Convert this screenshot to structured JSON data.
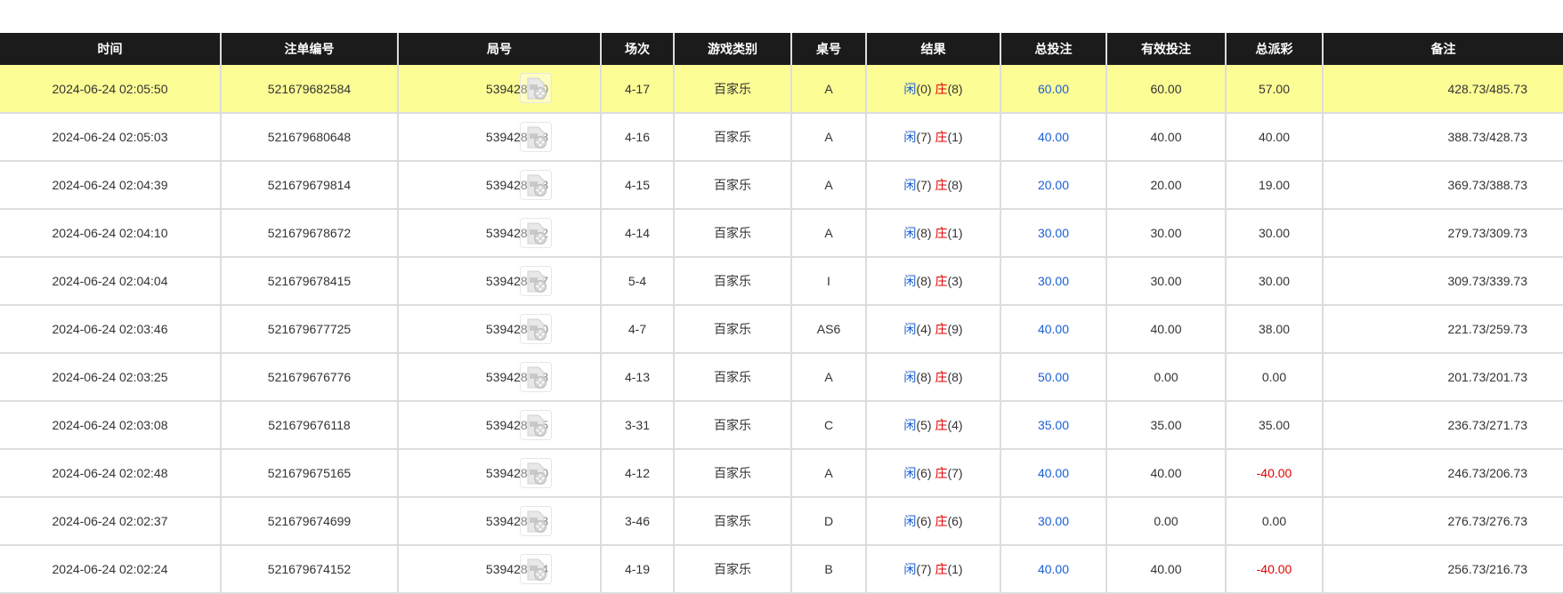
{
  "columns": [
    "时间",
    "注单编号",
    "局号",
    "场次",
    "游戏类别",
    "桌号",
    "结果",
    "总投注",
    "有效投注",
    "总派彩",
    "备注"
  ],
  "colors": {
    "header_bg": "#1b1b1b",
    "highlight_row": "#fdfd96",
    "player_blue": "#1a5fd6",
    "banker_red": "#e00000"
  },
  "rows": [
    {
      "time": "2024-06-24 02:05:50",
      "bet_id": "521679682584",
      "round": "539428740",
      "session": "4-17",
      "game": "百家乐",
      "table": "A",
      "player": "闲",
      "player_pts": "(0)",
      "banker": "庄",
      "banker_pts": "(8)",
      "total": "60.00",
      "valid": "60.00",
      "payout": "57.00",
      "payout_negative": false,
      "remark": "428.73/485.73",
      "highlighted": true
    },
    {
      "time": "2024-06-24 02:05:03",
      "bet_id": "521679680648",
      "round": "539428618",
      "session": "4-16",
      "game": "百家乐",
      "table": "A",
      "player": "闲",
      "player_pts": "(7)",
      "banker": "庄",
      "banker_pts": "(1)",
      "total": "40.00",
      "valid": "40.00",
      "payout": "40.00",
      "payout_negative": false,
      "remark": "388.73/428.73"
    },
    {
      "time": "2024-06-24 02:04:39",
      "bet_id": "521679679814",
      "round": "539428513",
      "session": "4-15",
      "game": "百家乐",
      "table": "A",
      "player": "闲",
      "player_pts": "(7)",
      "banker": "庄",
      "banker_pts": "(8)",
      "total": "20.00",
      "valid": "20.00",
      "payout": "19.00",
      "payout_negative": false,
      "remark": "369.73/388.73"
    },
    {
      "time": "2024-06-24 02:04:10",
      "bet_id": "521679678672",
      "round": "539428412",
      "session": "4-14",
      "game": "百家乐",
      "table": "A",
      "player": "闲",
      "player_pts": "(8)",
      "banker": "庄",
      "banker_pts": "(1)",
      "total": "30.00",
      "valid": "30.00",
      "payout": "30.00",
      "payout_negative": false,
      "remark": "279.73/309.73"
    },
    {
      "time": "2024-06-24 02:04:04",
      "bet_id": "521679678415",
      "round": "539428437",
      "session": "5-4",
      "game": "百家乐",
      "table": "I",
      "player": "闲",
      "player_pts": "(8)",
      "banker": "庄",
      "banker_pts": "(3)",
      "total": "30.00",
      "valid": "30.00",
      "payout": "30.00",
      "payout_negative": false,
      "remark": "309.73/339.73"
    },
    {
      "time": "2024-06-24 02:03:46",
      "bet_id": "521679677725",
      "round": "539428360",
      "session": "4-7",
      "game": "百家乐",
      "table": "AS6",
      "player": "闲",
      "player_pts": "(4)",
      "banker": "庄",
      "banker_pts": "(9)",
      "total": "40.00",
      "valid": "40.00",
      "payout": "38.00",
      "payout_negative": false,
      "remark": "221.73/259.73"
    },
    {
      "time": "2024-06-24 02:03:25",
      "bet_id": "521679676776",
      "round": "539428288",
      "session": "4-13",
      "game": "百家乐",
      "table": "A",
      "player": "闲",
      "player_pts": "(8)",
      "banker": "庄",
      "banker_pts": "(8)",
      "total": "50.00",
      "valid": "0.00",
      "payout": "0.00",
      "payout_negative": false,
      "remark": "201.73/201.73"
    },
    {
      "time": "2024-06-24 02:03:08",
      "bet_id": "521679676118",
      "round": "539428235",
      "session": "3-31",
      "game": "百家乐",
      "table": "C",
      "player": "闲",
      "player_pts": "(5)",
      "banker": "庄",
      "banker_pts": "(4)",
      "total": "35.00",
      "valid": "35.00",
      "payout": "35.00",
      "payout_negative": false,
      "remark": "236.73/271.73"
    },
    {
      "time": "2024-06-24 02:02:48",
      "bet_id": "521679675165",
      "round": "539428170",
      "session": "4-12",
      "game": "百家乐",
      "table": "A",
      "player": "闲",
      "player_pts": "(6)",
      "banker": "庄",
      "banker_pts": "(7)",
      "total": "40.00",
      "valid": "40.00",
      "payout": "-40.00",
      "payout_negative": true,
      "remark": "246.73/206.73"
    },
    {
      "time": "2024-06-24 02:02:37",
      "bet_id": "521679674699",
      "round": "539428143",
      "session": "3-46",
      "game": "百家乐",
      "table": "D",
      "player": "闲",
      "player_pts": "(6)",
      "banker": "庄",
      "banker_pts": "(6)",
      "total": "30.00",
      "valid": "0.00",
      "payout": "0.00",
      "payout_negative": false,
      "remark": "276.73/276.73"
    },
    {
      "time": "2024-06-24 02:02:24",
      "bet_id": "521679674152",
      "round": "539428104",
      "session": "4-19",
      "game": "百家乐",
      "table": "B",
      "player": "闲",
      "player_pts": "(7)",
      "banker": "庄",
      "banker_pts": "(1)",
      "total": "40.00",
      "valid": "40.00",
      "payout": "-40.00",
      "payout_negative": true,
      "remark": "256.73/216.73"
    }
  ]
}
